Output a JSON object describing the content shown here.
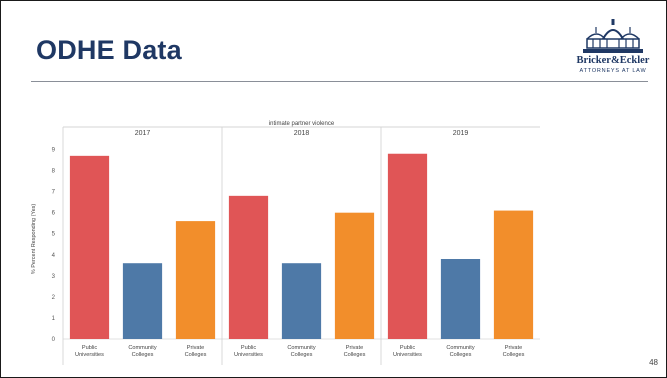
{
  "slide": {
    "title": "ODHE Data",
    "page_number": "48"
  },
  "logo": {
    "name": "Bricker&Eckler",
    "tagline": "ATTORNEYS AT LAW",
    "icon": "courthouse-dome-icon"
  },
  "chart_data": {
    "type": "bar",
    "title": "intimate partner violence",
    "ylabel": "% Percent Responding (Yes)",
    "xlabel": "",
    "ylim": [
      0,
      9.5
    ],
    "yticks": [
      0,
      1,
      2,
      3,
      4,
      5,
      6,
      7,
      8,
      9
    ],
    "grid": false,
    "categories": [
      "Public Universities",
      "Community Colleges",
      "Private Colleges"
    ],
    "category_lines": [
      [
        "Public",
        "Universities"
      ],
      [
        "Community",
        "Colleges"
      ],
      [
        "Private",
        "Colleges"
      ]
    ],
    "colors": [
      "#e05556",
      "#4e79a7",
      "#f28e2b"
    ],
    "panels": [
      {
        "name": "2017",
        "values": [
          8.7,
          3.6,
          5.6
        ]
      },
      {
        "name": "2018",
        "values": [
          6.8,
          3.6,
          6.0
        ]
      },
      {
        "name": "2019",
        "values": [
          8.8,
          3.8,
          6.1
        ]
      }
    ]
  }
}
